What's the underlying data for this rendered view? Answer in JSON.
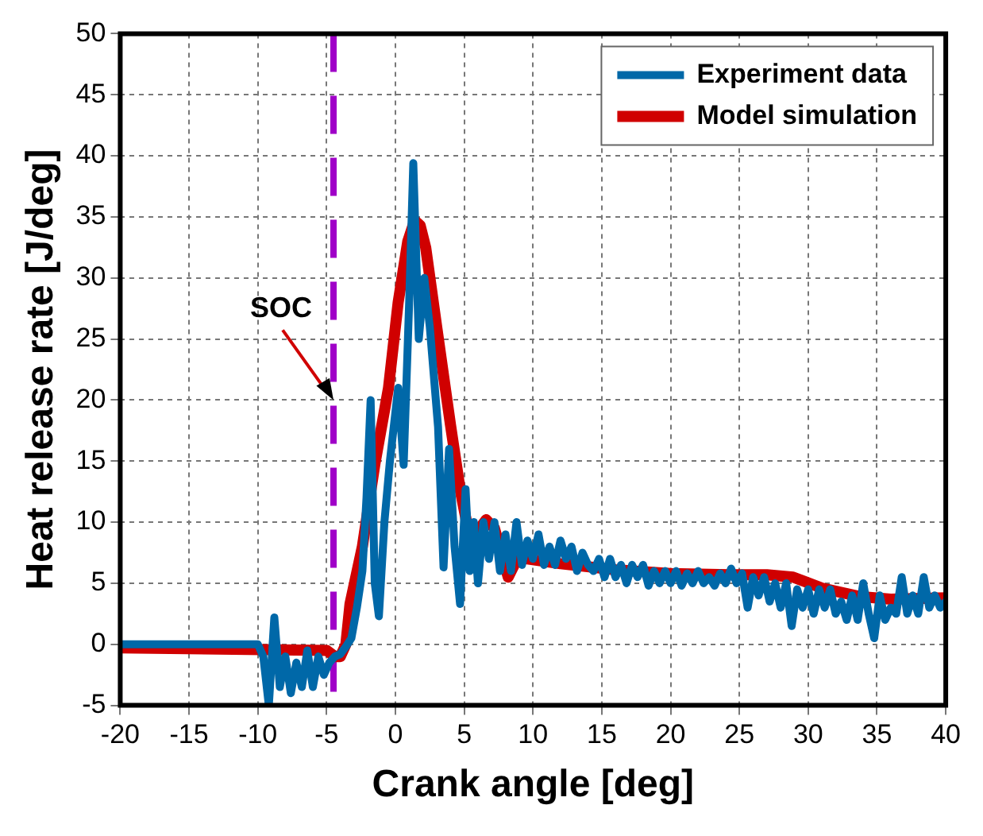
{
  "chart_data": {
    "type": "line",
    "xlabel": "Crank angle [deg]",
    "ylabel": "Heat release rate [J/deg]",
    "xlim": [
      -20,
      40
    ],
    "xticks": [
      -20,
      -15,
      -10,
      -5,
      0,
      5,
      10,
      15,
      20,
      25,
      30,
      35,
      40
    ],
    "ylim": [
      -5,
      50
    ],
    "yticks": [
      -5,
      0,
      5,
      10,
      15,
      20,
      25,
      30,
      35,
      40,
      45,
      50
    ],
    "grid": true,
    "legend": "top right",
    "marker": "none",
    "line_style": "solid",
    "ref_lines": [
      {
        "axis": "x",
        "value": -4.5,
        "color": "#a000c8",
        "line_style": "dashed"
      }
    ],
    "annotations": [
      {
        "text": "SOC",
        "x": -4.5,
        "y": 20
      }
    ],
    "series": [
      {
        "name": "Experiment data",
        "color": "#0068a8",
        "x": [
          -20,
          -10.5,
          -10,
          -9.6,
          -9.2,
          -8.8,
          -8.4,
          -8,
          -7.6,
          -7.2,
          -6.8,
          -6.4,
          -6,
          -5.6,
          -5.2,
          -4.8,
          -4.4,
          -4,
          -3.6,
          -3.2,
          -2.8,
          -2.4,
          -2.1,
          -1.8,
          -1.5,
          -1.2,
          -0.8,
          -0.4,
          0.2,
          0.6,
          1,
          1.3,
          1.7,
          2.1,
          2.5,
          3.1,
          3.5,
          3.9,
          4.3,
          4.7,
          5.1,
          5.4,
          5.7,
          6,
          6.4,
          6.8,
          7.2,
          7.6,
          8,
          8.4,
          8.8,
          9.2,
          9.6,
          10,
          10.4,
          10.8,
          11.2,
          11.6,
          12,
          12.4,
          12.8,
          13.2,
          13.6,
          14,
          14.4,
          14.8,
          15.2,
          15.6,
          16,
          16.4,
          16.8,
          17.2,
          17.6,
          18,
          18.4,
          18.8,
          19.2,
          19.6,
          20,
          20.4,
          20.8,
          21.2,
          21.6,
          22,
          22.4,
          22.8,
          23.2,
          23.6,
          24,
          24.4,
          24.8,
          25.2,
          25.6,
          26,
          26.4,
          26.8,
          27.2,
          27.6,
          28,
          28.4,
          28.8,
          29.2,
          29.6,
          30,
          30.4,
          30.8,
          31.2,
          31.6,
          32,
          32.4,
          32.8,
          33.2,
          33.6,
          34,
          34.4,
          34.8,
          35.2,
          35.6,
          36,
          36.4,
          36.8,
          37.2,
          37.6,
          38,
          38.4,
          38.8,
          39.2,
          39.6,
          40
        ],
        "values": [
          0,
          0,
          0,
          -1,
          -5,
          2.2,
          -3.5,
          -1,
          -4,
          -1.5,
          -3.5,
          -0.5,
          -3.5,
          -1,
          -2.5,
          -1.5,
          -1,
          -0.8,
          -0.2,
          0.5,
          3,
          6,
          12,
          20,
          5,
          2.3,
          10,
          15,
          21,
          14.7,
          28,
          39.4,
          25,
          30,
          26,
          17.8,
          6.3,
          16,
          8,
          3.3,
          12.7,
          6,
          10,
          5,
          10,
          7,
          10,
          6,
          9,
          6,
          10,
          6.5,
          8.5,
          7,
          9,
          6.5,
          8,
          6.5,
          8.5,
          7,
          8,
          6,
          7.5,
          6.5,
          6,
          7,
          5.5,
          7,
          5.5,
          6.5,
          5,
          6.5,
          5.5,
          6.5,
          4.8,
          6,
          5,
          6,
          5,
          6,
          4.8,
          5.8,
          5,
          6,
          5,
          5.5,
          4.8,
          5.8,
          5,
          6.2,
          5,
          5.8,
          3,
          5.5,
          4,
          5.5,
          3.5,
          5,
          3,
          5,
          1.5,
          4.5,
          3,
          4.5,
          2.5,
          4.5,
          3,
          4.5,
          2.5,
          3.5,
          2,
          4,
          2,
          5,
          2.5,
          0.5,
          4,
          2,
          3,
          2.5,
          5.5,
          2.5,
          4,
          2.5,
          5.5,
          3,
          4,
          3,
          3.5
        ]
      },
      {
        "name": "Model simulation",
        "color": "#d00000",
        "x": [
          -20,
          -5,
          -4.4,
          -4,
          -3.6,
          -3.3,
          -2.4,
          -1.5,
          -0.5,
          0.2,
          0.9,
          1.4,
          1.8,
          2.2,
          3,
          4,
          4.7,
          5.3,
          6,
          6.6,
          7.2,
          8.2,
          8.9,
          12,
          16,
          20,
          24.3,
          27,
          28.9,
          31,
          33.8,
          36,
          40
        ],
        "values": [
          -0.3,
          -0.5,
          -1,
          -1,
          0,
          3.3,
          8,
          14.7,
          21,
          28,
          33,
          34.7,
          34.3,
          32.5,
          26,
          18,
          12.7,
          9.3,
          9.3,
          10.2,
          9.5,
          5.5,
          7.1,
          6.6,
          6.1,
          5.8,
          5.7,
          5.7,
          5.5,
          4.6,
          3.9,
          3.7,
          3.8
        ]
      }
    ]
  }
}
